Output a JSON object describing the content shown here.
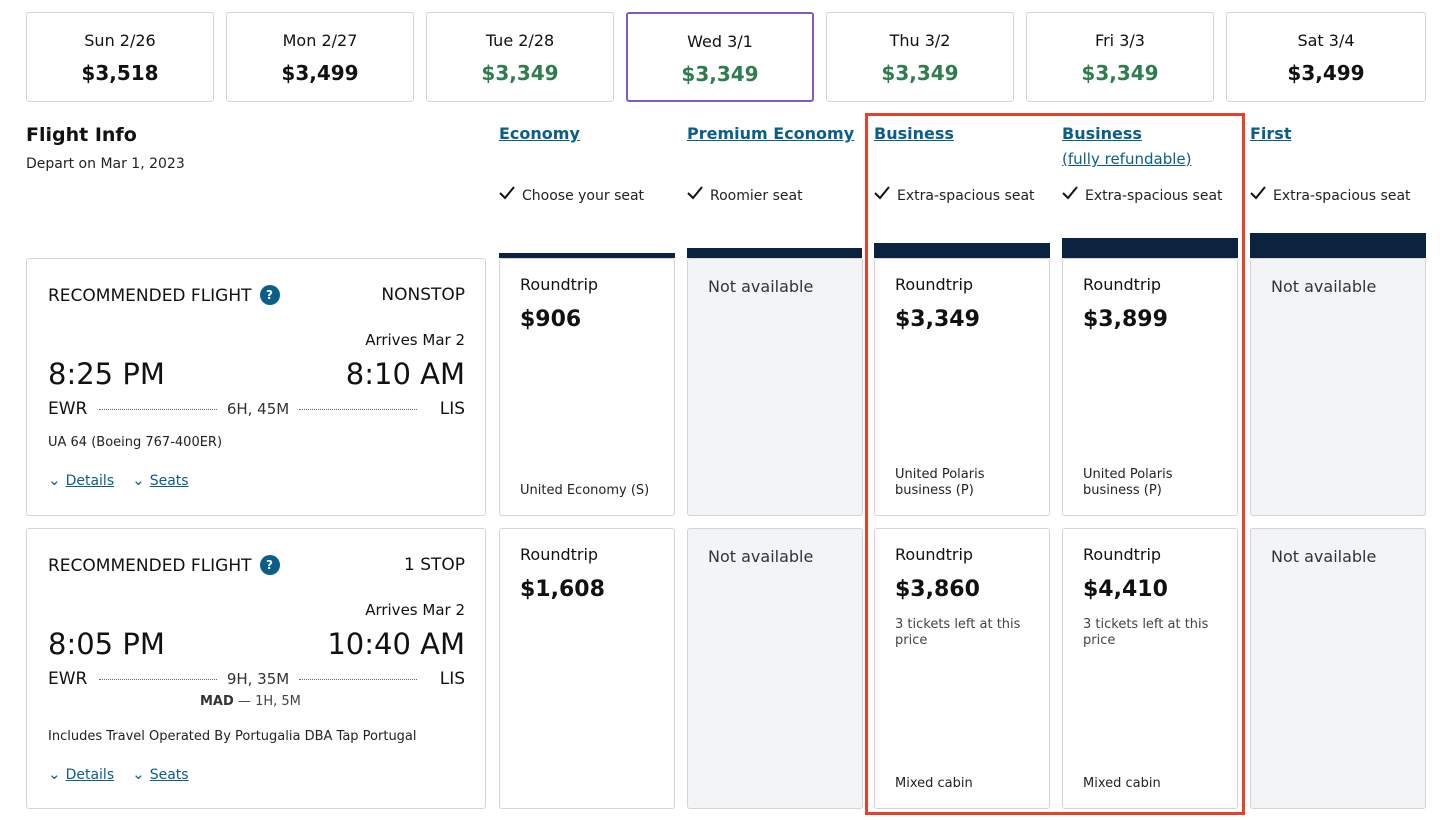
{
  "dates": [
    {
      "label": "Sun 2/26",
      "price": "$3,518",
      "lowest": false,
      "selected": false
    },
    {
      "label": "Mon 2/27",
      "price": "$3,499",
      "lowest": false,
      "selected": false
    },
    {
      "label": "Tue 2/28",
      "price": "$3,349",
      "lowest": true,
      "selected": false
    },
    {
      "label": "Wed 3/1",
      "price": "$3,349",
      "lowest": true,
      "selected": true
    },
    {
      "label": "Thu 3/2",
      "price": "$3,349",
      "lowest": true,
      "selected": false
    },
    {
      "label": "Fri 3/3",
      "price": "$3,349",
      "lowest": true,
      "selected": false
    },
    {
      "label": "Sat 3/4",
      "price": "$3,499",
      "lowest": false,
      "selected": false
    }
  ],
  "flight_info": {
    "title": "Flight Info",
    "depart": "Depart on Mar 1, 2023"
  },
  "columns": [
    {
      "title": "Economy",
      "subtitle": "",
      "feature": "Choose your seat"
    },
    {
      "title": "Premium Economy",
      "subtitle": "",
      "feature": "Roomier seat"
    },
    {
      "title": "Business",
      "subtitle": "",
      "feature": "Extra-spacious seat"
    },
    {
      "title": "Business",
      "subtitle": "(fully refundable)",
      "feature": "Extra-spacious seat"
    },
    {
      "title": "First",
      "subtitle": "",
      "feature": "Extra-spacious seat"
    }
  ],
  "flights": [
    {
      "label": "RECOMMENDED FLIGHT",
      "stops": "NONSTOP",
      "arrives": "Arrives Mar 2",
      "depart_time": "8:25 PM",
      "arrive_time": "8:10 AM",
      "origin": "EWR",
      "destination": "LIS",
      "duration": "6H, 45M",
      "layover_airport": "",
      "layover_duration": "",
      "note": "UA 64 (Boeing 767-400ER)",
      "details_label": "Details",
      "seats_label": "Seats",
      "fares": [
        {
          "available": true,
          "type": "Roundtrip",
          "price": "$906",
          "tickets": "",
          "cabin": "United Economy (S)"
        },
        {
          "available": false,
          "text": "Not available"
        },
        {
          "available": true,
          "type": "Roundtrip",
          "price": "$3,349",
          "tickets": "",
          "cabin": "United Polaris business (P)"
        },
        {
          "available": true,
          "type": "Roundtrip",
          "price": "$3,899",
          "tickets": "",
          "cabin": "United Polaris business (P)"
        },
        {
          "available": false,
          "text": "Not available"
        }
      ]
    },
    {
      "label": "RECOMMENDED FLIGHT",
      "stops": "1 STOP",
      "arrives": "Arrives Mar 2",
      "depart_time": "8:05 PM",
      "arrive_time": "10:40 AM",
      "origin": "EWR",
      "destination": "LIS",
      "duration": "9H, 35M",
      "layover_airport": "MAD",
      "layover_duration": "1H, 5M",
      "note": "Includes Travel Operated By Portugalia DBA Tap Portugal",
      "details_label": "Details",
      "seats_label": "Seats",
      "fares": [
        {
          "available": true,
          "type": "Roundtrip",
          "price": "$1,608",
          "tickets": "",
          "cabin": ""
        },
        {
          "available": false,
          "text": "Not available"
        },
        {
          "available": true,
          "type": "Roundtrip",
          "price": "$3,860",
          "tickets": "3 tickets left at this price",
          "cabin": "Mixed cabin"
        },
        {
          "available": true,
          "type": "Roundtrip",
          "price": "$4,410",
          "tickets": "3 tickets left at this price",
          "cabin": "Mixed cabin"
        },
        {
          "available": false,
          "text": "Not available"
        }
      ]
    }
  ],
  "colors": {
    "lowest_price": "#2f7d4f",
    "selected_border": "#7a5dc7",
    "link": "#0b5d8a",
    "cabin_bar": "#0c2340",
    "highlight": "#e8402a"
  },
  "icons": {
    "check": "checkmark-icon",
    "help": "question-icon",
    "expand": "chevron-down-icon"
  }
}
